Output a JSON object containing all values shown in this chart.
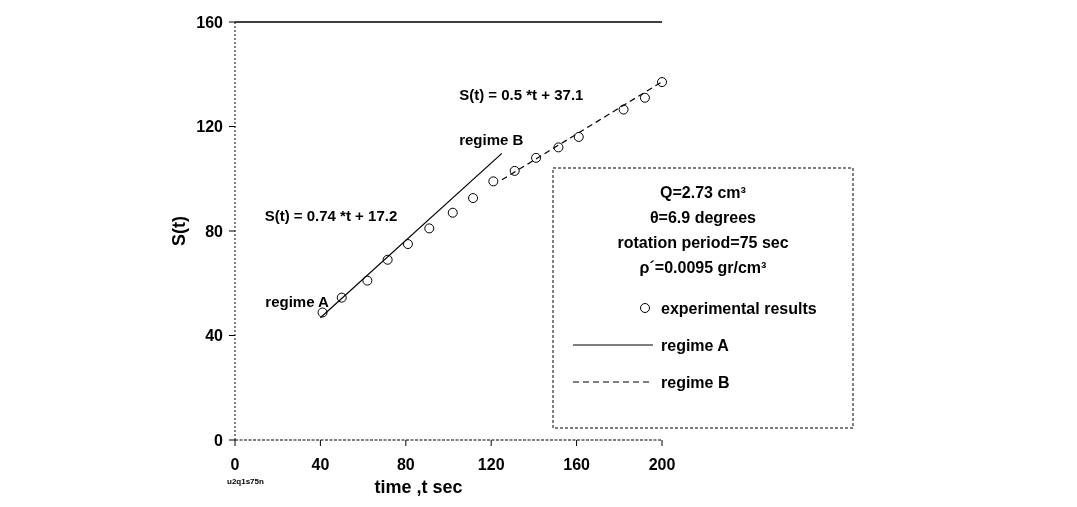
{
  "chart_data": {
    "type": "scatter",
    "xlabel": "time  ,t  sec",
    "ylabel": "S(t)",
    "xlim": [
      0,
      200
    ],
    "ylim": [
      0,
      160
    ],
    "xticks": [
      0,
      40,
      80,
      120,
      160,
      200
    ],
    "yticks": [
      0,
      40,
      80,
      120,
      160
    ],
    "grid": false,
    "legend": "bottom right",
    "series": [
      {
        "name": "experimental results",
        "marker": "circle",
        "color": "#000000",
        "x": [
          41,
          50,
          62,
          71.5,
          81,
          91,
          102,
          111.5,
          121,
          131,
          141,
          151.5,
          161,
          182,
          192,
          200
        ],
        "values": [
          48.8,
          54.5,
          61,
          69,
          75,
          81,
          87,
          92.6,
          99,
          103,
          108,
          112,
          116,
          126.5,
          131,
          137
        ]
      },
      {
        "name": "regime  A",
        "type": "line",
        "line_style": "solid",
        "color": "#000000",
        "x": [
          40,
          125
        ],
        "values": [
          46.8,
          109.7
        ]
      },
      {
        "name": "regime   B",
        "type": "line",
        "line_style": "dashed",
        "color": "#000000",
        "x": [
          125,
          200
        ],
        "values": [
          99.6,
          137.1
        ]
      }
    ],
    "annotations": [
      "S(t) = 0.5 *t + 37.1",
      "regime  B",
      "S(t) = 0.74 *t + 17.2",
      "regime A",
      "Q=2.73 cm³",
      "θ=6.9 degrees",
      "rotation period=75 sec",
      "ρ´=0.0095 gr/cm³",
      "u2q1s75n"
    ]
  }
}
